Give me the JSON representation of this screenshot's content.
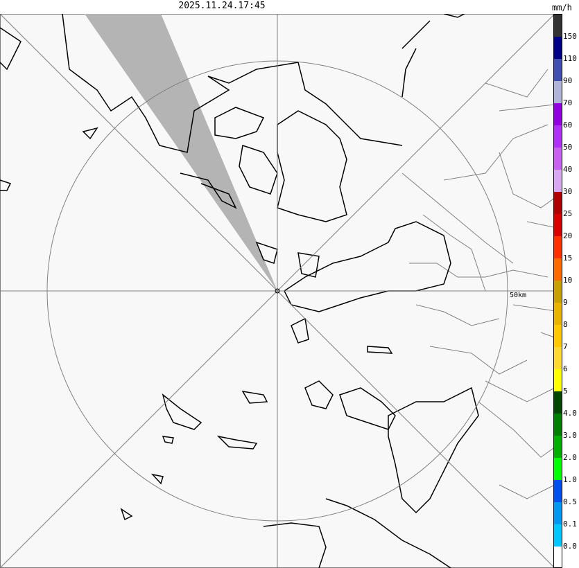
{
  "title": "2025.11.24.17:45",
  "unit": "mm/h",
  "range_ring_label": "50km",
  "legend": {
    "labels": [
      "150",
      "110",
      "90",
      "70",
      "60",
      "50",
      "40",
      "30",
      "25",
      "20",
      "15",
      "10",
      "9",
      "8",
      "7",
      "6",
      "5",
      "4.0",
      "3.0",
      "2.0",
      "1.0",
      "0.5",
      "0.1",
      "0.0"
    ],
    "colors": [
      "#333333",
      "#000088",
      "#4050b0",
      "#b0b4d8",
      "#9000e0",
      "#b030f8",
      "#c860f0",
      "#d8a8f0",
      "#b00000",
      "#d80000",
      "#ff3000",
      "#ff6a00",
      "#c8a000",
      "#e8b400",
      "#ffc800",
      "#ffd830",
      "#ffff00",
      "#004800",
      "#008000",
      "#00b000",
      "#00ff00",
      "#0050f0",
      "#0098f0",
      "#00c8ff",
      "#ffffff"
    ]
  },
  "colors": {
    "background": "#f8f8f8",
    "blocked_sector": "#b4b4b4",
    "coast": "#000000",
    "border": "#808080",
    "grid": "#808080"
  }
}
